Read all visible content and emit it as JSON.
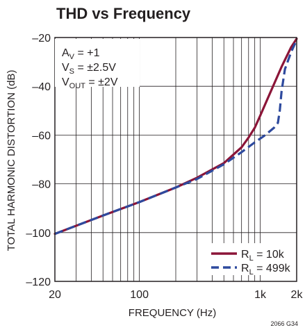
{
  "chart_data": {
    "type": "line",
    "title": "THD vs Frequency",
    "xlabel": "FREQUENCY (Hz)",
    "ylabel": "TOTAL HARMONIC DISTORTION (dB)",
    "x_scale": "log",
    "xlim": [
      20,
      2000
    ],
    "ylim": [
      -120,
      -20
    ],
    "x_ticks": [
      20,
      100,
      1000,
      2000
    ],
    "x_tick_labels": [
      "20",
      "100",
      "1k",
      "2k"
    ],
    "y_ticks": [
      -20,
      -40,
      -60,
      -80,
      -100,
      -120
    ],
    "y_tick_labels": [
      "–20",
      "–40",
      "–60",
      "–80",
      "–100",
      "–120"
    ],
    "grid": true,
    "annotation": {
      "av_main": "A",
      "av_sub": "V",
      "av_value": " = +1",
      "vs_main": "V",
      "vs_sub": "S",
      "vs_value": " = ±2.5V",
      "vout_main": "V",
      "vout_sub": "OUT",
      "vout_value": " = ±2V"
    },
    "legend_position": "bottom-right",
    "series": [
      {
        "name": "RL = 10k",
        "label_main": "R",
        "label_sub": "L",
        "label_value": " = 10k",
        "color": "#8b1538",
        "style": "solid",
        "x": [
          20,
          50,
          100,
          200,
          300,
          500,
          700,
          800,
          900,
          1000,
          1200,
          1500,
          1800,
          2000
        ],
        "y": [
          -100.5,
          -93,
          -87.5,
          -81.5,
          -77.5,
          -71.5,
          -65,
          -61,
          -57,
          -52,
          -43,
          -32,
          -24,
          -20.5
        ]
      },
      {
        "name": "RL = 499k",
        "label_main": "R",
        "label_sub": "L",
        "label_value": " = 499k",
        "color": "#2e4a9e",
        "style": "dashed",
        "x": [
          20,
          50,
          100,
          200,
          300,
          500,
          700,
          900,
          1100,
          1300,
          1400,
          1450,
          1500,
          1600,
          1800,
          2000
        ],
        "y": [
          -100.5,
          -93,
          -87.5,
          -81.5,
          -78,
          -72,
          -67,
          -63,
          -60,
          -57,
          -55,
          -50,
          -42,
          -33,
          -26,
          -21
        ]
      }
    ]
  },
  "footer_code": "2066 G34"
}
